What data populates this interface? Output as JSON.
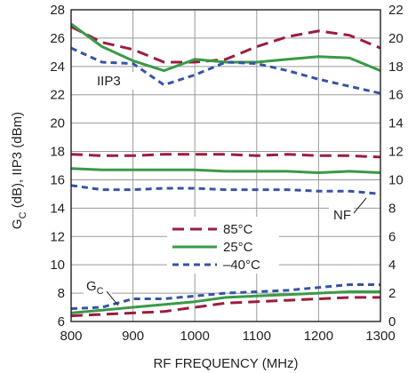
{
  "chart_data": {
    "type": "line",
    "xlabel": "RF FREQUENCY (MHz)",
    "ylabel_main": "G",
    "ylabel_sub": "C",
    "ylabel_rest": " (dB), IIP3 (dBm)",
    "xlim": [
      800,
      1300
    ],
    "ylim_left": [
      6,
      28
    ],
    "ylim_right": [
      0,
      22
    ],
    "x_ticks": [
      "800",
      "900",
      "1000",
      "1100",
      "1200",
      "1300"
    ],
    "y_ticks_left": [
      "6",
      "8",
      "10",
      "12",
      "14",
      "16",
      "18",
      "20",
      "22",
      "24",
      "26",
      "28"
    ],
    "y_ticks_right": [
      "0",
      "2",
      "4",
      "6",
      "8",
      "10",
      "12",
      "14",
      "16",
      "18",
      "20",
      "22"
    ],
    "grid": true,
    "annotations": {
      "iip3": "IIP3",
      "nf": "NF",
      "gc_main": "G",
      "gc_sub": "C"
    },
    "legend": [
      {
        "name": "85°C",
        "color": "#9b1d3d",
        "dash": "long-dash"
      },
      {
        "name": "25°C",
        "color": "#3a9a47",
        "dash": "solid"
      },
      {
        "name": "–40°C",
        "color": "#3654a6",
        "dash": "short-dash"
      }
    ],
    "series": [
      {
        "group": "IIP3",
        "temp": "85°C",
        "axis": "left",
        "x": [
          800,
          850,
          900,
          950,
          1000,
          1050,
          1100,
          1150,
          1200,
          1250,
          1300
        ],
        "y": [
          26.8,
          25.7,
          25.2,
          24.3,
          24.3,
          24.5,
          25.4,
          26.1,
          26.5,
          26.2,
          25.3
        ]
      },
      {
        "group": "IIP3",
        "temp": "25°C",
        "axis": "left",
        "x": [
          800,
          850,
          900,
          950,
          1000,
          1050,
          1100,
          1150,
          1200,
          1250,
          1300
        ],
        "y": [
          27.0,
          25.4,
          24.4,
          23.7,
          24.5,
          24.3,
          24.3,
          24.5,
          24.7,
          24.6,
          23.7
        ]
      },
      {
        "group": "IIP3",
        "temp": "–40°C",
        "axis": "left",
        "x": [
          800,
          850,
          900,
          950,
          1000,
          1050,
          1100,
          1150,
          1200,
          1250,
          1300
        ],
        "y": [
          25.3,
          24.3,
          24.2,
          22.7,
          23.4,
          24.3,
          24.2,
          23.7,
          23.1,
          22.6,
          22.1
        ]
      },
      {
        "group": "NF",
        "temp": "85°C",
        "axis": "right",
        "x": [
          800,
          850,
          900,
          950,
          1000,
          1050,
          1100,
          1150,
          1200,
          1250,
          1300
        ],
        "y": [
          11.8,
          11.7,
          11.7,
          11.8,
          11.8,
          11.8,
          11.7,
          11.8,
          11.7,
          11.7,
          11.6
        ]
      },
      {
        "group": "NF",
        "temp": "25°C",
        "axis": "right",
        "x": [
          800,
          850,
          900,
          950,
          1000,
          1050,
          1100,
          1150,
          1200,
          1250,
          1300
        ],
        "y": [
          10.8,
          10.7,
          10.7,
          10.7,
          10.7,
          10.6,
          10.6,
          10.6,
          10.5,
          10.6,
          10.5
        ]
      },
      {
        "group": "NF",
        "temp": "–40°C",
        "axis": "right",
        "x": [
          800,
          850,
          900,
          950,
          1000,
          1050,
          1100,
          1150,
          1200,
          1250,
          1300
        ],
        "y": [
          9.6,
          9.3,
          9.3,
          9.4,
          9.4,
          9.3,
          9.3,
          9.3,
          9.2,
          9.2,
          9.0
        ]
      },
      {
        "group": "GC",
        "temp": "85°C",
        "axis": "left",
        "x": [
          800,
          850,
          900,
          950,
          1000,
          1050,
          1100,
          1150,
          1200,
          1250,
          1300
        ],
        "y": [
          6.4,
          6.5,
          6.6,
          6.7,
          7.0,
          7.3,
          7.4,
          7.5,
          7.6,
          7.7,
          7.7
        ]
      },
      {
        "group": "GC",
        "temp": "25°C",
        "axis": "left",
        "x": [
          800,
          850,
          900,
          950,
          1000,
          1050,
          1100,
          1150,
          1200,
          1250,
          1300
        ],
        "y": [
          6.6,
          6.8,
          7.0,
          7.2,
          7.4,
          7.7,
          7.8,
          7.9,
          8.0,
          8.1,
          8.1
        ]
      },
      {
        "group": "GC",
        "temp": "–40°C",
        "axis": "left",
        "x": [
          800,
          850,
          900,
          950,
          1000,
          1050,
          1100,
          1150,
          1200,
          1250,
          1300
        ],
        "y": [
          6.9,
          7.0,
          7.6,
          7.6,
          7.8,
          8.0,
          8.1,
          8.2,
          8.4,
          8.6,
          8.6
        ]
      }
    ]
  }
}
